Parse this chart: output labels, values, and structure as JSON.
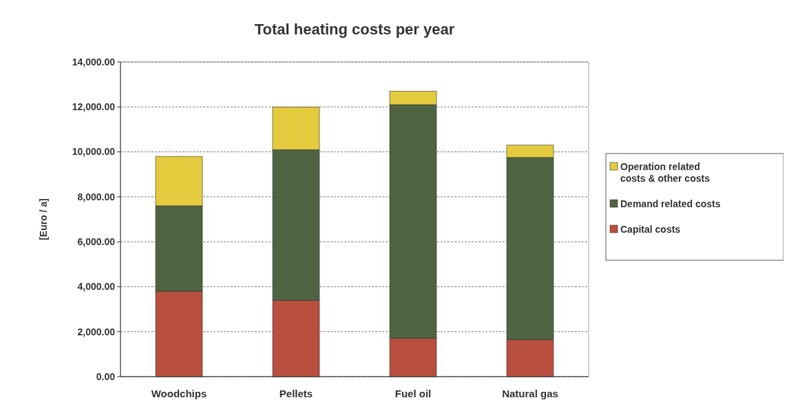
{
  "chart_data": {
    "type": "bar",
    "title": "Total heating costs per year",
    "ylabel": "[Euro / a]",
    "categories": [
      "Woodchips",
      "Pellets",
      "Fuel oil",
      "Natural gas"
    ],
    "stacked": true,
    "series": [
      {
        "name": "Capital costs",
        "color": "#b94f3f",
        "values": [
          3800,
          3400,
          1700,
          1650
        ]
      },
      {
        "name": "Demand related costs",
        "color": "#4e6340",
        "values": [
          3800,
          6700,
          10400,
          8100
        ]
      },
      {
        "name": "Operation related costs & other costs",
        "color": "#e4cb3e",
        "values": [
          2200,
          1900,
          600,
          550
        ]
      }
    ],
    "ylim": [
      0,
      14000
    ],
    "yticks": [
      {
        "value": 0,
        "label": "0.00"
      },
      {
        "value": 2000,
        "label": "2,000.00"
      },
      {
        "value": 4000,
        "label": "4,000.00"
      },
      {
        "value": 6000,
        "label": "6,000.00"
      },
      {
        "value": 8000,
        "label": "8,000.00"
      },
      {
        "value": 10000,
        "label": "10,000.00"
      },
      {
        "value": 12000,
        "label": "12,000.00"
      },
      {
        "value": 14000,
        "label": "14,000.00"
      }
    ],
    "grid": "y",
    "legend": "right"
  }
}
